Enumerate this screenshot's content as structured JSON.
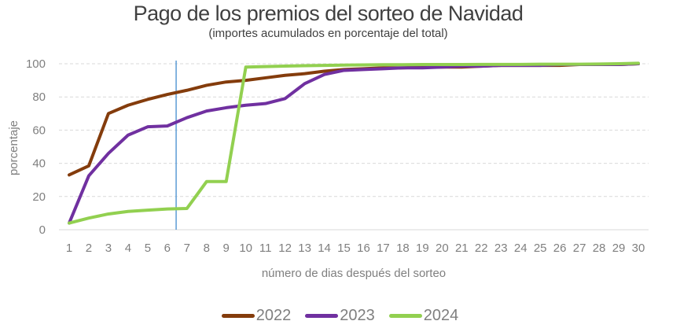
{
  "chart_data": {
    "type": "line",
    "title": "Pago de los premios del sorteo de Navidad",
    "subtitle": "(importes acumulados en porcentaje del total)",
    "xlabel": "número de dias después del sorteo",
    "ylabel": "porcentaje",
    "ylim": [
      0,
      100
    ],
    "yticks": [
      "0",
      "20",
      "40",
      "60",
      "80",
      "100"
    ],
    "xlim": [
      1,
      30
    ],
    "x": [
      "1",
      "2",
      "3",
      "4",
      "5",
      "6",
      "7",
      "8",
      "9",
      "10",
      "11",
      "12",
      "13",
      "14",
      "15",
      "16",
      "17",
      "18",
      "19",
      "20",
      "21",
      "22",
      "23",
      "24",
      "25",
      "26",
      "27",
      "28",
      "29",
      "30"
    ],
    "grid": true,
    "legend_position": "bottom",
    "reference_line_x": 6.45,
    "series": [
      {
        "name": "2022",
        "color": "#843c0c",
        "values": [
          33,
          38.5,
          70,
          75,
          78.5,
          81.5,
          84,
          87,
          89,
          90,
          91.5,
          93,
          94,
          95.5,
          96.5,
          97,
          97.5,
          97.5,
          98,
          98,
          98,
          98.5,
          99,
          99,
          99,
          99,
          99.5,
          99.5,
          99.5,
          100
        ]
      },
      {
        "name": "2023",
        "color": "#7030a0",
        "values": [
          4,
          32.5,
          46,
          57,
          62,
          62.5,
          67.5,
          71.5,
          73.5,
          75,
          76,
          79,
          88,
          93.5,
          96,
          96.5,
          97,
          97.5,
          97.5,
          98,
          98.5,
          98.5,
          99,
          99,
          99,
          99.5,
          99.5,
          99.5,
          99.5,
          100
        ]
      },
      {
        "name": "2024",
        "color": "#92d050",
        "values": [
          4,
          7,
          9.5,
          11,
          11.8,
          12.5,
          12.8,
          29,
          29,
          98,
          98.3,
          98.6,
          98.8,
          99,
          99.2,
          99.3,
          99.4,
          99.4,
          99.5,
          99.5,
          99.5,
          99.6,
          99.6,
          99.6,
          99.7,
          99.7,
          99.7,
          99.8,
          100,
          100.3
        ]
      }
    ]
  },
  "colors": {
    "grid": "#d9d9d9",
    "axis": "#d9d9d9",
    "reference_line": "#5b9bd5",
    "text": "#7f7f7f"
  }
}
